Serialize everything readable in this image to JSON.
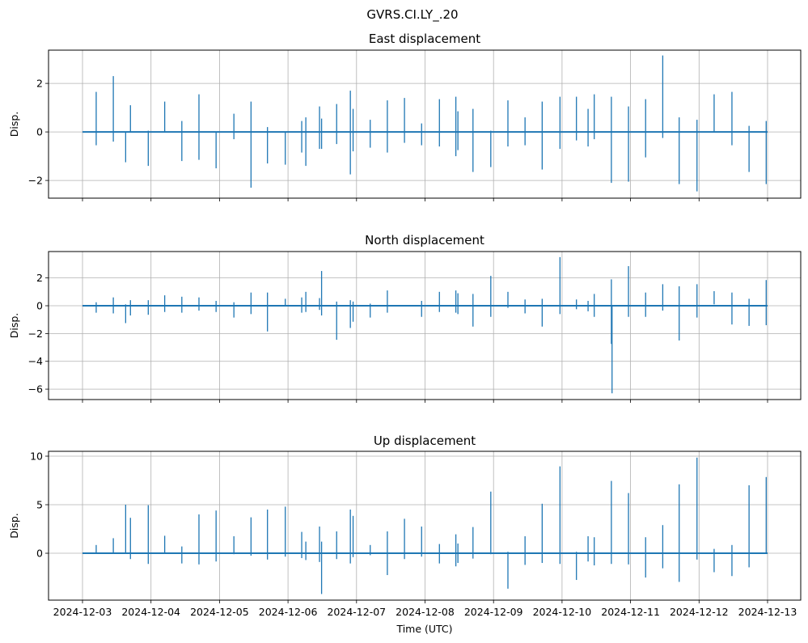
{
  "chart_data": {
    "suptitle": "GVRS.CI.LY_.20",
    "type": "line",
    "xlabel": "Time (UTC)",
    "x_start": "2024-12-03",
    "x_unit": "days since 2024-12-03",
    "xlim": [
      -0.5,
      10.48
    ],
    "x_ticks": [
      "2024-12-03",
      "2024-12-04",
      "2024-12-05",
      "2024-12-06",
      "2024-12-07",
      "2024-12-08",
      "2024-12-09",
      "2024-12-10",
      "2024-12-11",
      "2024-12-12",
      "2024-12-13"
    ],
    "line_color": "#1f77b4",
    "grid": true,
    "panels": [
      {
        "title": "East displacement",
        "ylabel": "Disp.",
        "ylim": [
          -2.73,
          3.37
        ],
        "y_ticks": [
          -2,
          0,
          2
        ],
        "y_tick_labels": [
          "−2",
          "0",
          "2"
        ],
        "events": [
          [
            0.2,
            1.65,
            -0.55
          ],
          [
            0.45,
            2.3,
            -0.4
          ],
          [
            0.63,
            0,
            -1.25
          ],
          [
            0.7,
            1.1,
            0
          ],
          [
            0.96,
            0.05,
            -1.4
          ],
          [
            1.2,
            1.25,
            0
          ],
          [
            1.45,
            0.45,
            -1.2
          ],
          [
            1.7,
            1.55,
            -1.15
          ],
          [
            1.95,
            0,
            -1.5
          ],
          [
            2.21,
            0.75,
            -0.3
          ],
          [
            2.46,
            1.25,
            -2.3
          ],
          [
            2.7,
            0.2,
            -1.3
          ],
          [
            2.96,
            0,
            -1.35
          ],
          [
            3.2,
            0.45,
            -0.85
          ],
          [
            3.26,
            0.6,
            -1.4
          ],
          [
            3.46,
            1.05,
            -0.7
          ],
          [
            3.49,
            0.55,
            -0.7
          ],
          [
            3.71,
            1.15,
            -0.5
          ],
          [
            3.91,
            1.7,
            -1.75
          ],
          [
            3.95,
            0.95,
            -0.8
          ],
          [
            4.2,
            0.5,
            -0.65
          ],
          [
            4.45,
            1.3,
            -0.85
          ],
          [
            4.7,
            1.4,
            -0.45
          ],
          [
            4.95,
            0.35,
            -0.55
          ],
          [
            5.21,
            1.35,
            -0.6
          ],
          [
            5.45,
            1.45,
            -1.0
          ],
          [
            5.48,
            0.85,
            -0.75
          ],
          [
            5.7,
            0.95,
            -1.65
          ],
          [
            5.96,
            0.05,
            -1.45
          ],
          [
            6.21,
            1.3,
            -0.6
          ],
          [
            6.46,
            0.6,
            -0.55
          ],
          [
            6.71,
            1.25,
            -1.55
          ],
          [
            6.97,
            1.45,
            -0.7
          ],
          [
            7.21,
            1.45,
            -0.35
          ],
          [
            7.38,
            0.95,
            -0.6
          ],
          [
            7.47,
            1.55,
            -0.3
          ],
          [
            7.72,
            1.45,
            -2.1
          ],
          [
            7.97,
            1.05,
            -2.05
          ],
          [
            8.22,
            1.35,
            -1.05
          ],
          [
            8.47,
            3.15,
            -0.25
          ],
          [
            8.71,
            0.6,
            -2.15
          ],
          [
            8.97,
            0.5,
            -2.45
          ],
          [
            9.22,
            1.55,
            0
          ],
          [
            9.48,
            1.65,
            -0.55
          ],
          [
            9.73,
            0.25,
            -1.65
          ],
          [
            9.98,
            0.45,
            -2.15
          ]
        ]
      },
      {
        "title": "North displacement",
        "ylabel": "Disp.",
        "ylim": [
          -6.75,
          3.9
        ],
        "y_ticks": [
          -6,
          -4,
          -2,
          0,
          2
        ],
        "y_tick_labels": [
          "−6",
          "−4",
          "−2",
          "0",
          "2"
        ],
        "events": [
          [
            0.2,
            0.25,
            -0.5
          ],
          [
            0.45,
            0.6,
            -0.55
          ],
          [
            0.63,
            0.1,
            -1.25
          ],
          [
            0.7,
            0.4,
            -0.7
          ],
          [
            0.96,
            0.4,
            -0.65
          ],
          [
            1.2,
            0.75,
            -0.45
          ],
          [
            1.45,
            0.65,
            -0.5
          ],
          [
            1.7,
            0.6,
            -0.35
          ],
          [
            1.95,
            0.35,
            -0.45
          ],
          [
            2.21,
            0.25,
            -0.85
          ],
          [
            2.46,
            0.95,
            -0.6
          ],
          [
            2.7,
            0.95,
            -1.85
          ],
          [
            2.96,
            0.5,
            0
          ],
          [
            3.2,
            0.6,
            -0.5
          ],
          [
            3.26,
            1.0,
            -0.45
          ],
          [
            3.46,
            0.55,
            -0.3
          ],
          [
            3.49,
            2.5,
            -0.7
          ],
          [
            3.71,
            0.3,
            -2.45
          ],
          [
            3.91,
            0.4,
            -1.6
          ],
          [
            3.95,
            0.3,
            -1.15
          ],
          [
            4.2,
            0.15,
            -0.85
          ],
          [
            4.45,
            1.1,
            -0.5
          ],
          [
            4.7,
            0.05,
            0
          ],
          [
            4.95,
            0.35,
            -0.8
          ],
          [
            5.21,
            1.0,
            -0.45
          ],
          [
            5.45,
            1.1,
            -0.5
          ],
          [
            5.48,
            0.9,
            -0.6
          ],
          [
            5.7,
            0.85,
            -1.5
          ],
          [
            5.96,
            2.15,
            -0.8
          ],
          [
            6.21,
            1.0,
            -0.15
          ],
          [
            6.46,
            0.45,
            -0.55
          ],
          [
            6.71,
            0.5,
            -1.5
          ],
          [
            6.97,
            3.5,
            -0.6
          ],
          [
            7.21,
            0.45,
            -0.25
          ],
          [
            7.38,
            0.35,
            -0.4
          ],
          [
            7.47,
            0.85,
            -0.8
          ],
          [
            7.72,
            1.9,
            -2.75
          ],
          [
            7.73,
            0,
            -6.3
          ],
          [
            7.97,
            2.85,
            -0.8
          ],
          [
            8.22,
            0.95,
            -0.8
          ],
          [
            8.47,
            1.55,
            -0.35
          ],
          [
            8.71,
            1.4,
            -2.5
          ],
          [
            8.97,
            1.55,
            -0.85
          ],
          [
            9.22,
            1.05,
            0.1
          ],
          [
            9.48,
            0.95,
            -1.35
          ],
          [
            9.73,
            0.5,
            -1.45
          ],
          [
            9.98,
            1.85,
            -1.4
          ]
        ]
      },
      {
        "title": "Up displacement",
        "ylabel": "Disp.",
        "ylim": [
          -4.83,
          10.5
        ],
        "y_ticks": [
          0,
          5,
          10
        ],
        "y_tick_labels": [
          "0",
          "5",
          "10"
        ],
        "events": [
          [
            0.2,
            0.85,
            0
          ],
          [
            0.45,
            1.55,
            0
          ],
          [
            0.63,
            5.0,
            0
          ],
          [
            0.7,
            3.65,
            -0.6
          ],
          [
            0.96,
            4.95,
            -1.1
          ],
          [
            1.2,
            1.8,
            0
          ],
          [
            1.45,
            0.7,
            -1.05
          ],
          [
            1.7,
            4.0,
            -1.15
          ],
          [
            1.95,
            4.4,
            -0.85
          ],
          [
            2.21,
            1.75,
            -0.1
          ],
          [
            2.46,
            3.7,
            -0.25
          ],
          [
            2.7,
            4.5,
            -0.65
          ],
          [
            2.96,
            4.8,
            -0.35
          ],
          [
            3.2,
            2.2,
            -0.5
          ],
          [
            3.26,
            1.2,
            -0.7
          ],
          [
            3.46,
            2.75,
            -0.9
          ],
          [
            3.49,
            1.2,
            -4.2
          ],
          [
            3.71,
            2.25,
            -0.6
          ],
          [
            3.91,
            4.5,
            -1.05
          ],
          [
            3.95,
            3.85,
            -0.4
          ],
          [
            4.2,
            0.85,
            -0.2
          ],
          [
            4.45,
            2.25,
            -2.25
          ],
          [
            4.7,
            3.55,
            -0.6
          ],
          [
            4.95,
            2.75,
            -0.35
          ],
          [
            5.21,
            0.95,
            -1.05
          ],
          [
            5.45,
            1.95,
            -1.35
          ],
          [
            5.48,
            1.0,
            -1.0
          ],
          [
            5.7,
            2.7,
            -0.55
          ],
          [
            5.96,
            6.35,
            -0.1
          ],
          [
            6.21,
            0.15,
            -3.65
          ],
          [
            6.46,
            1.75,
            -1.2
          ],
          [
            6.71,
            5.1,
            -1.0
          ],
          [
            6.97,
            8.95,
            -1.1
          ],
          [
            7.21,
            0.15,
            -2.75
          ],
          [
            7.38,
            1.75,
            -0.85
          ],
          [
            7.47,
            1.65,
            -1.25
          ],
          [
            7.72,
            7.45,
            -1.1
          ],
          [
            7.97,
            6.2,
            -1.15
          ],
          [
            8.22,
            1.65,
            -2.5
          ],
          [
            8.47,
            2.9,
            -1.55
          ],
          [
            8.71,
            7.1,
            -2.95
          ],
          [
            8.97,
            9.85,
            -0.65
          ],
          [
            9.22,
            0.45,
            -1.95
          ],
          [
            9.48,
            0.85,
            -2.35
          ],
          [
            9.73,
            7.0,
            -1.45
          ],
          [
            9.98,
            7.85,
            0
          ]
        ]
      }
    ]
  }
}
